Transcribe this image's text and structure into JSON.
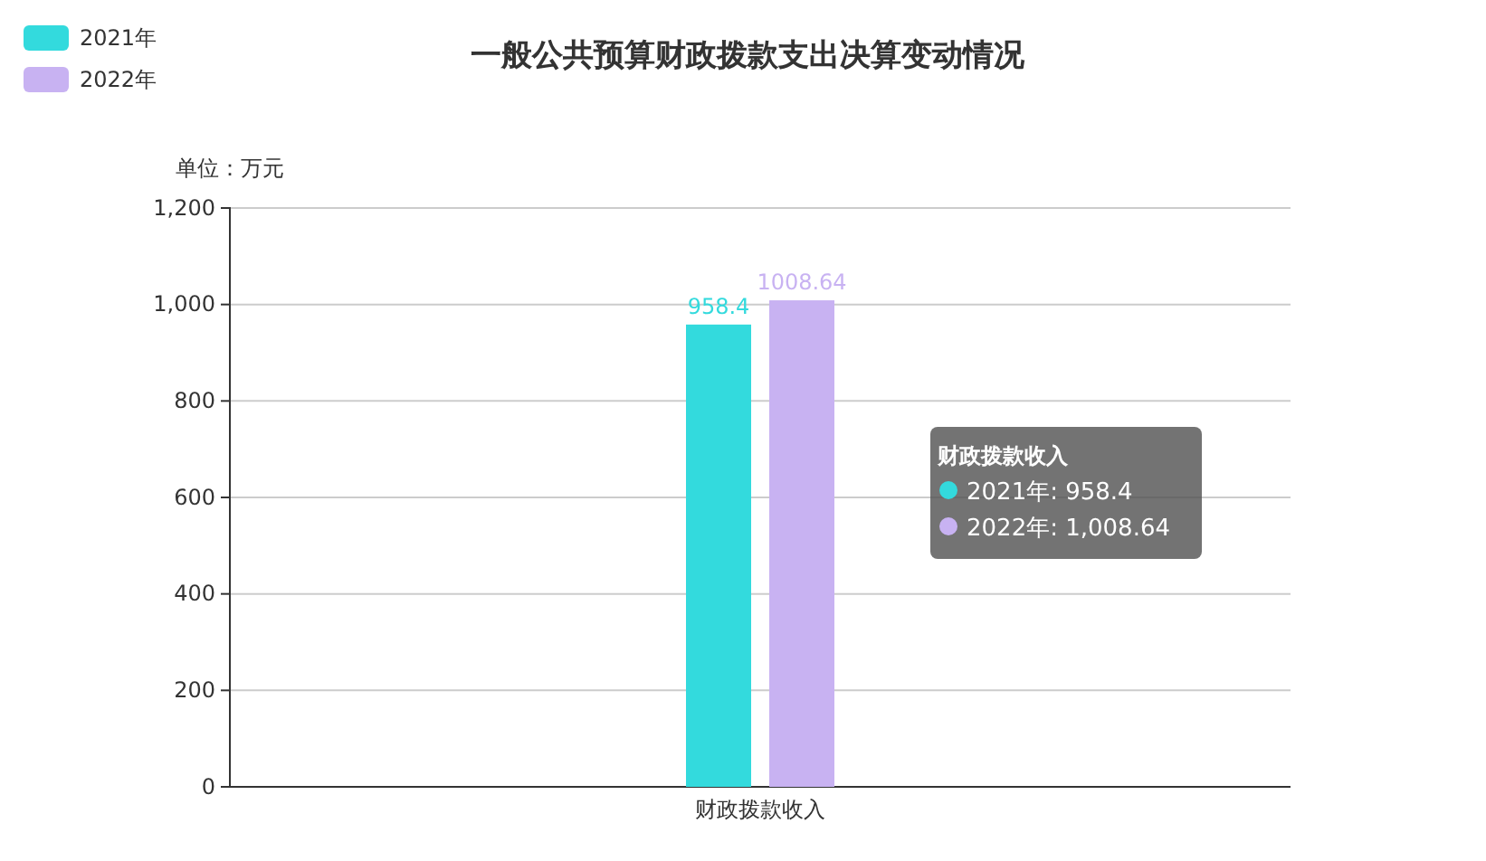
{
  "chart_data": {
    "type": "bar",
    "title": "一般公共预算财政拨款支出决算变动情况",
    "ylabel": "单位：万元",
    "categories": [
      "财政拨款收入"
    ],
    "series": [
      {
        "name": "2021年",
        "color": "#33dadd",
        "values": [
          958.4
        ]
      },
      {
        "name": "2022年",
        "color": "#c8b2f2",
        "values": [
          1008.64
        ]
      }
    ],
    "ylim": [
      0,
      1200
    ],
    "yticks": [
      0,
      200,
      400,
      600,
      800,
      {
        "value": 1000,
        "label": "1,000"
      },
      {
        "value": 1200,
        "label": "1,200"
      }
    ],
    "grid": "y",
    "legend": "top left",
    "data_labels": true,
    "annotations": [
      "财政拨款收入",
      "2021年: 958.4",
      "2022年: 1,008.64"
    ]
  }
}
